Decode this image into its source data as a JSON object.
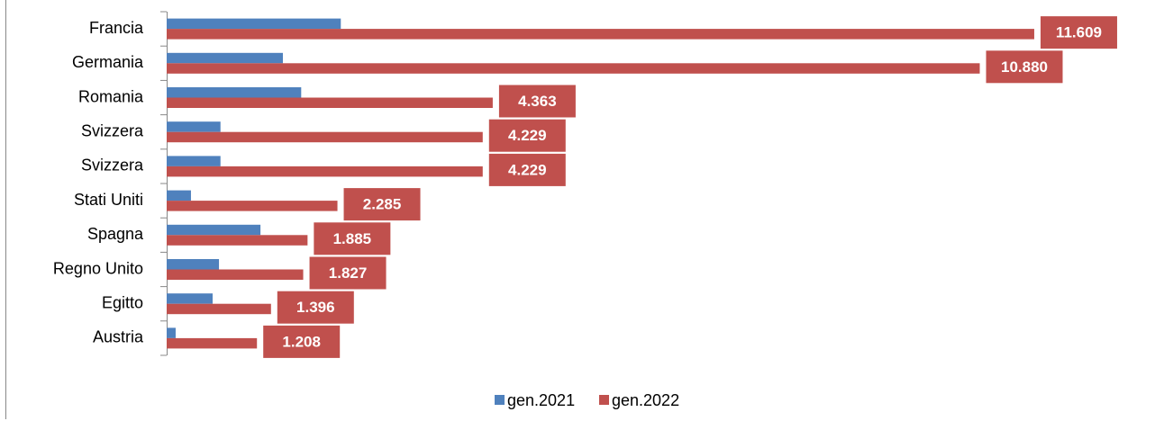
{
  "chart_data": {
    "type": "bar",
    "orientation": "horizontal",
    "categories": [
      "Francia",
      "Germania",
      "Romania",
      "Svizzera",
      "Svizzera",
      "Stati Uniti",
      "Spagna",
      "Regno Unito",
      "Egitto",
      "Austria"
    ],
    "series": [
      {
        "name": "gen.2021",
        "color": "#4f81bd",
        "values": [
          2330,
          1555,
          1800,
          720,
          720,
          325,
          1255,
          700,
          615,
          120
        ]
      },
      {
        "name": "gen.2022",
        "color": "#c0504d",
        "values": [
          11609,
          10880,
          4363,
          4229,
          4229,
          2285,
          1885,
          1827,
          1396,
          1208
        ],
        "value_labels": [
          "11.609",
          "10.880",
          "4.363",
          "4.229",
          "4.229",
          "2.285",
          "1.885",
          "1.827",
          "1.396",
          "1.208"
        ]
      }
    ],
    "xlim": [
      0,
      13000
    ],
    "legend": "bottom"
  }
}
